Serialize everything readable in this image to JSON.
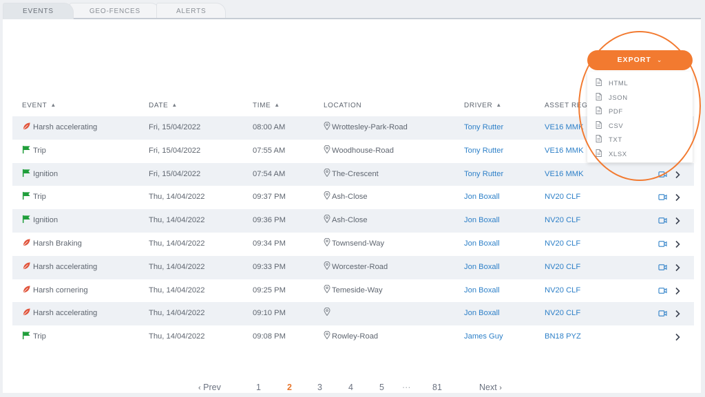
{
  "tabs": [
    "EVENTS",
    "GEO-FENCES",
    "ALERTS"
  ],
  "columns": {
    "event": "EVENT",
    "date": "DATE",
    "time": "TIME",
    "location": "LOCATION",
    "driver": "DRIVER",
    "asset": "ASSET REG"
  },
  "rows": [
    {
      "type": "harsh",
      "event": "Harsh accelerating",
      "date": "Fri, 15/04/2022",
      "time": "08:00 AM",
      "location": "Wrottesley-Park-Road",
      "driver": "Tony Rutter",
      "asset": "VE16 MMK",
      "camera": true
    },
    {
      "type": "flag",
      "event": "Trip",
      "date": "Fri, 15/04/2022",
      "time": "07:55 AM",
      "location": "Woodhouse-Road",
      "driver": "Tony Rutter",
      "asset": "VE16 MMK",
      "camera": true
    },
    {
      "type": "flag",
      "event": "Ignition",
      "date": "Fri, 15/04/2022",
      "time": "07:54 AM",
      "location": "The-Crescent",
      "driver": "Tony Rutter",
      "asset": "VE16 MMK",
      "camera": true
    },
    {
      "type": "flag",
      "event": "Trip",
      "date": "Thu, 14/04/2022",
      "time": "09:37 PM",
      "location": "Ash-Close",
      "driver": "Jon Boxall",
      "asset": "NV20 CLF",
      "camera": true
    },
    {
      "type": "flag",
      "event": "Ignition",
      "date": "Thu, 14/04/2022",
      "time": "09:36 PM",
      "location": "Ash-Close",
      "driver": "Jon Boxall",
      "asset": "NV20 CLF",
      "camera": true
    },
    {
      "type": "harsh",
      "event": "Harsh Braking",
      "date": "Thu, 14/04/2022",
      "time": "09:34 PM",
      "location": "Townsend-Way",
      "driver": "Jon Boxall",
      "asset": "NV20 CLF",
      "camera": true
    },
    {
      "type": "harsh",
      "event": "Harsh accelerating",
      "date": "Thu, 14/04/2022",
      "time": "09:33 PM",
      "location": "Worcester-Road",
      "driver": "Jon Boxall",
      "asset": "NV20 CLF",
      "camera": true
    },
    {
      "type": "harsh",
      "event": "Harsh cornering",
      "date": "Thu, 14/04/2022",
      "time": "09:25 PM",
      "location": "Temeside-Way",
      "driver": "Jon Boxall",
      "asset": "NV20 CLF",
      "camera": true
    },
    {
      "type": "harsh",
      "event": "Harsh accelerating",
      "date": "Thu, 14/04/2022",
      "time": "09:10 PM",
      "location": "",
      "driver": "Jon Boxall",
      "asset": "NV20 CLF",
      "camera": true
    },
    {
      "type": "flag",
      "event": "Trip",
      "date": "Thu, 14/04/2022",
      "time": "09:08 PM",
      "location": "Rowley-Road",
      "driver": "James Guy",
      "asset": "BN18 PYZ",
      "camera": false
    }
  ],
  "pagination": {
    "prev": "Prev",
    "next": "Next",
    "pages": [
      "1",
      "2",
      "3",
      "4",
      "5"
    ],
    "ellipsis": "···",
    "last": "81",
    "current": "2"
  },
  "export": {
    "label": "EXPORT",
    "options": [
      "HTML",
      "JSON",
      "PDF",
      "CSV",
      "TXT",
      "XLSX"
    ]
  },
  "colors": {
    "accent": "#f27a30",
    "link": "#2e80c8",
    "flag": "#1f9e3a",
    "harsh": "#e0533a"
  }
}
